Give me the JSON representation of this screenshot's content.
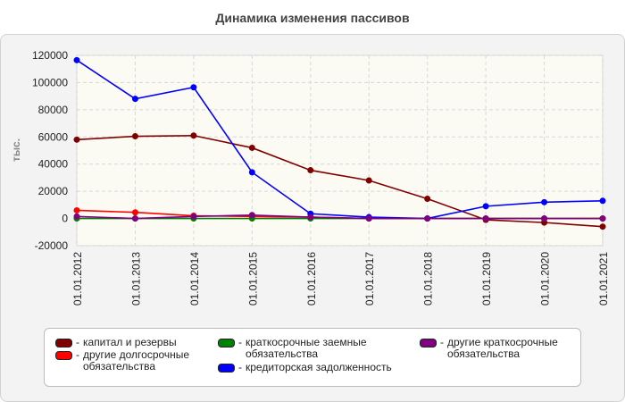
{
  "title": "Динамика изменения пассивов",
  "chart_data": {
    "type": "line",
    "title": "Динамика изменения пассивов",
    "ylabel": "тыс.",
    "xlabel": "",
    "ylim": [
      -20000,
      120000
    ],
    "yticks": [
      120000,
      100000,
      80000,
      60000,
      40000,
      20000,
      0,
      -20000
    ],
    "categories": [
      "01.01.2012",
      "01.01.2013",
      "01.01.2014",
      "01.01.2015",
      "01.01.2016",
      "01.01.2017",
      "01.01.2018",
      "01.01.2019",
      "01.01.2020",
      "01.01.2021"
    ],
    "grid": true,
    "legend_position": "bottom",
    "series": [
      {
        "name": "капитал и резервы",
        "color": "#800000",
        "values": [
          58000,
          60500,
          61000,
          52000,
          35500,
          28000,
          14500,
          -1000,
          -3000,
          -6000
        ]
      },
      {
        "name": "другие долгосрочные обязательства",
        "color": "#ff0000",
        "values": [
          6000,
          4500,
          2000,
          1500,
          1000,
          0,
          0,
          0,
          0,
          0
        ]
      },
      {
        "name": "краткосрочные заемные обязательства",
        "color": "#008000",
        "values": [
          0,
          0,
          0,
          0,
          0,
          0,
          0,
          0,
          0,
          0
        ]
      },
      {
        "name": "кредиторская задолженность",
        "color": "#0000ff",
        "values": [
          116500,
          88000,
          96500,
          34000,
          3500,
          1000,
          0,
          9000,
          12000,
          13000
        ]
      },
      {
        "name": "другие краткосрочные обязательства",
        "color": "#800080",
        "values": [
          1500,
          0,
          1500,
          2500,
          1000,
          0,
          0,
          0,
          0,
          0
        ]
      }
    ]
  }
}
